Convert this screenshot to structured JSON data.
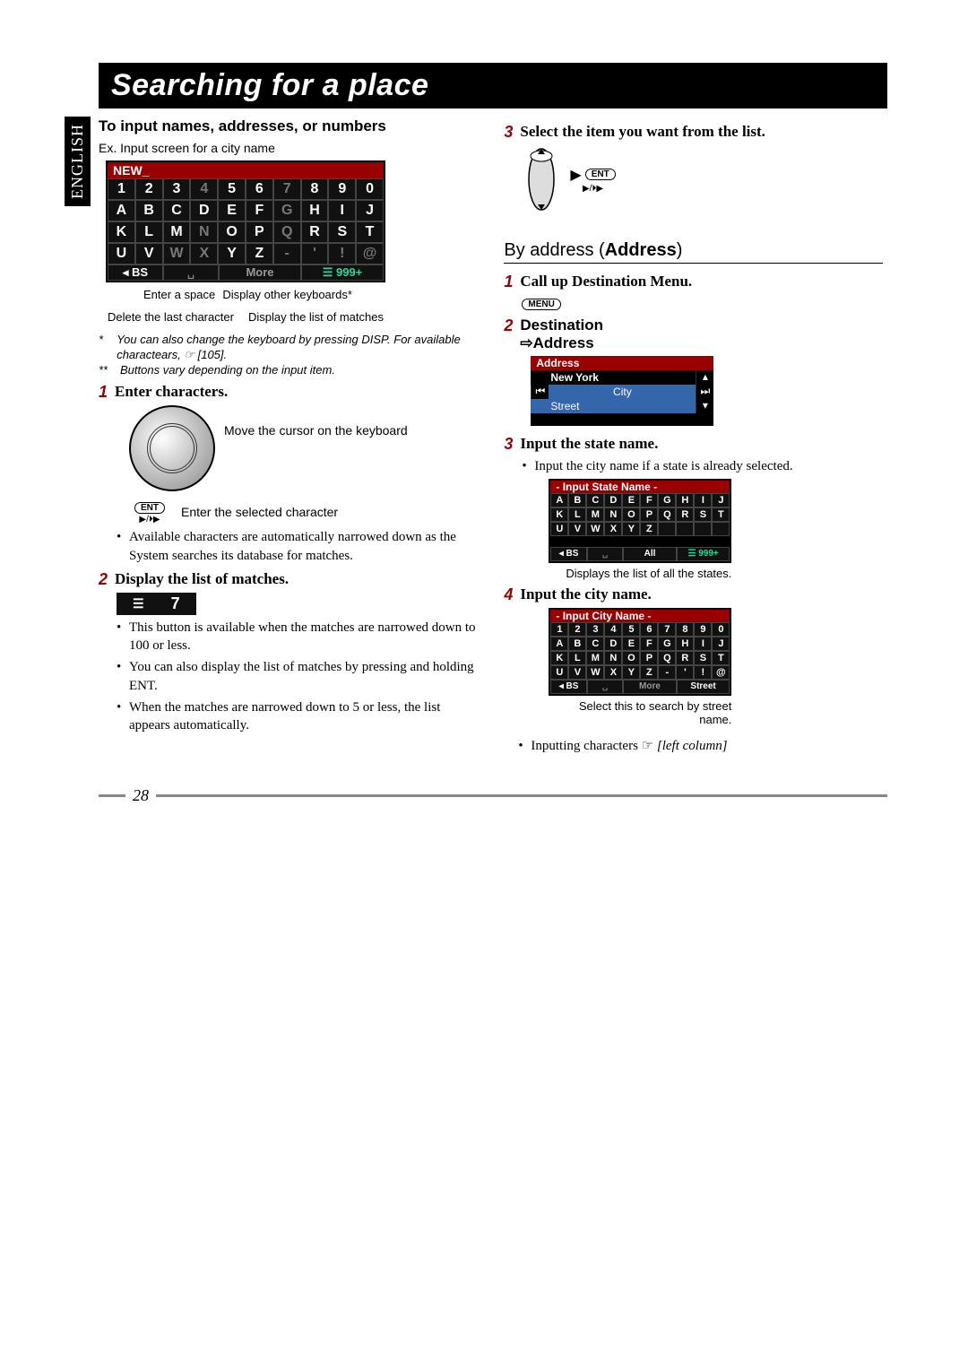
{
  "lang_tab": "ENGLISH",
  "title": "Searching for a place",
  "left": {
    "heading": "To input names, addresses, or numbers",
    "caption": "Ex. Input screen for a city name",
    "kbd": {
      "title": "NEW_",
      "rows": [
        {
          "cells": [
            "1",
            "2",
            "3",
            "4",
            "5",
            "6",
            "7",
            "8",
            "9",
            "0"
          ],
          "dim": [
            0,
            0,
            0,
            1,
            0,
            0,
            1,
            0,
            0,
            0
          ]
        },
        {
          "cells": [
            "A",
            "B",
            "C",
            "D",
            "E",
            "F",
            "G",
            "H",
            "I",
            "J"
          ],
          "dim": [
            0,
            0,
            0,
            0,
            0,
            0,
            1,
            0,
            0,
            0
          ]
        },
        {
          "cells": [
            "K",
            "L",
            "M",
            "N",
            "O",
            "P",
            "Q",
            "R",
            "S",
            "T"
          ],
          "dim": [
            0,
            0,
            0,
            1,
            0,
            0,
            1,
            0,
            0,
            0
          ]
        },
        {
          "cells": [
            "U",
            "V",
            "W",
            "X",
            "Y",
            "Z",
            "-",
            "'",
            "!",
            "@"
          ],
          "dim": [
            0,
            0,
            1,
            1,
            0,
            0,
            1,
            1,
            1,
            1
          ]
        }
      ],
      "bottom": {
        "bs": "◂ BS",
        "space": "␣",
        "more": "More",
        "matches": "☰ 999+"
      }
    },
    "annot": {
      "a1": "Enter a space",
      "a2": "Display other keyboards*",
      "a3": "Delete the last character",
      "a4": "Display the list of matches"
    },
    "footnote1": "You can also change the keyboard by pressing DISP. For available charactears, ☞ [105].",
    "footnote2": "Buttons vary depending on the input item.",
    "step1": {
      "num": "1",
      "title": "Enter characters.",
      "dial_label1": "Move the cursor on the keyboard",
      "ent_label": "Enter the selected character",
      "ent": "ENT",
      "symbol": "▶/⏵▶",
      "bullet": "Available characters are automatically narrowed down as the System searches its database for matches."
    },
    "step2": {
      "num": "2",
      "title": "Display the list of matches.",
      "pill_sym": "☰",
      "pill_num": "7",
      "b1": "This button is available when the matches are narrowed down to 100 or less.",
      "b2": "You can also display the list of matches by pressing and holding ENT.",
      "b3": "When the matches are narrowed down to 5 or less, the list appears automatically."
    }
  },
  "right": {
    "sel_num": "3",
    "sel_title": "Select the item you want from the list.",
    "ent": "ENT",
    "by_address": {
      "label": "By address (",
      "bold": "Address",
      "tail": ")"
    },
    "r1": {
      "num": "1",
      "title": "Call up Destination Menu.",
      "menu": "MENU"
    },
    "r2": {
      "num": "2",
      "line1": "Destination",
      "line2": "⇨Address"
    },
    "addr_screen": {
      "hdr": "Address",
      "rows": [
        "New York",
        "City",
        "Street"
      ]
    },
    "r3": {
      "num": "3",
      "title": "Input the state name.",
      "bullet": "Input the city name if a state is already selected."
    },
    "state_kbd": {
      "title": "- Input State Name -",
      "rows": [
        {
          "cells": [
            "A",
            "B",
            "C",
            "D",
            "E",
            "F",
            "G",
            "H",
            "I",
            "J"
          ]
        },
        {
          "cells": [
            "K",
            "L",
            "M",
            "N",
            "O",
            "P",
            "Q",
            "R",
            "S",
            "T"
          ]
        },
        {
          "cells": [
            "U",
            "V",
            "W",
            "X",
            "Y",
            "Z",
            "",
            "",
            "",
            ""
          ]
        }
      ],
      "bottom": {
        "bs": "◂ BS",
        "space": "␣",
        "more": "All",
        "matches": "☰ 999+"
      },
      "note": "Displays the list of all the states."
    },
    "r4": {
      "num": "4",
      "title": "Input the city name."
    },
    "city_kbd": {
      "title": "- Input City Name -",
      "rows": [
        {
          "cells": [
            "1",
            "2",
            "3",
            "4",
            "5",
            "6",
            "7",
            "8",
            "9",
            "0"
          ]
        },
        {
          "cells": [
            "A",
            "B",
            "C",
            "D",
            "E",
            "F",
            "G",
            "H",
            "I",
            "J"
          ]
        },
        {
          "cells": [
            "K",
            "L",
            "M",
            "N",
            "O",
            "P",
            "Q",
            "R",
            "S",
            "T"
          ]
        },
        {
          "cells": [
            "U",
            "V",
            "W",
            "X",
            "Y",
            "Z",
            "-",
            "'",
            "!",
            "@"
          ]
        }
      ],
      "bottom": {
        "bs": "◂ BS",
        "space": "␣",
        "more": "More",
        "matches": "Street"
      },
      "note": "Select this to search by street name."
    },
    "footer_bullet": "Inputting characters ☞",
    "footer_ital": "[left column]"
  },
  "page_num": "28"
}
